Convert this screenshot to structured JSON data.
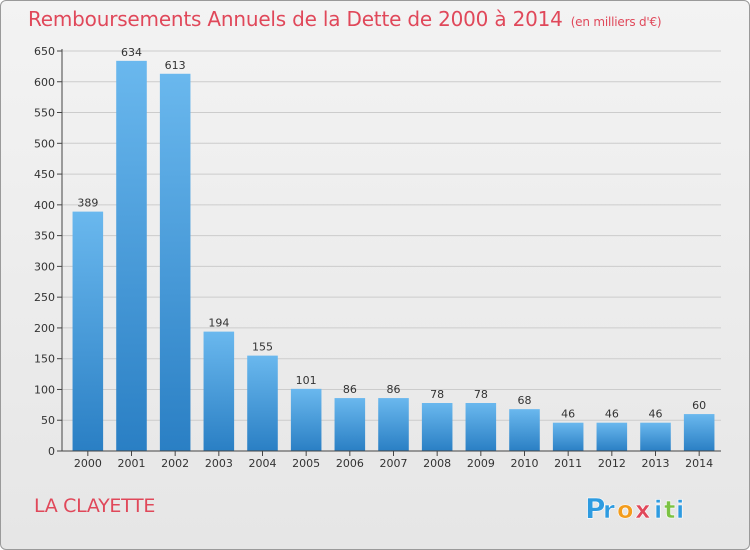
{
  "title": "Remboursements Annuels de la Dette de 2000 à 2014",
  "unit_note": "(en milliers d'€)",
  "commune": "LA CLAYETTE",
  "logo": {
    "letters": [
      "P",
      "r",
      "o",
      "x",
      "i",
      "t",
      "i"
    ],
    "colors": [
      "#2e9be0",
      "#2e9be0",
      "#f39c1c",
      "#e0485a",
      "#2e9be0",
      "#7cc243",
      "#2e9be0"
    ]
  },
  "colors": {
    "bar_top": "#6ab8ee",
    "bar_bottom": "#2a7fc4",
    "title": "#e0485a",
    "grid": "#cccccc"
  },
  "chart_data": {
    "type": "bar",
    "categories": [
      "2000",
      "2001",
      "2002",
      "2003",
      "2004",
      "2005",
      "2006",
      "2007",
      "2008",
      "2009",
      "2010",
      "2011",
      "2012",
      "2013",
      "2014"
    ],
    "values": [
      389,
      634,
      613,
      194,
      155,
      101,
      86,
      86,
      78,
      78,
      68,
      46,
      46,
      46,
      60
    ],
    "ylim": [
      0,
      650
    ],
    "yticks": [
      0,
      50,
      100,
      150,
      200,
      250,
      300,
      350,
      400,
      450,
      500,
      550,
      600,
      650
    ],
    "grid": true,
    "data_labels": true
  }
}
